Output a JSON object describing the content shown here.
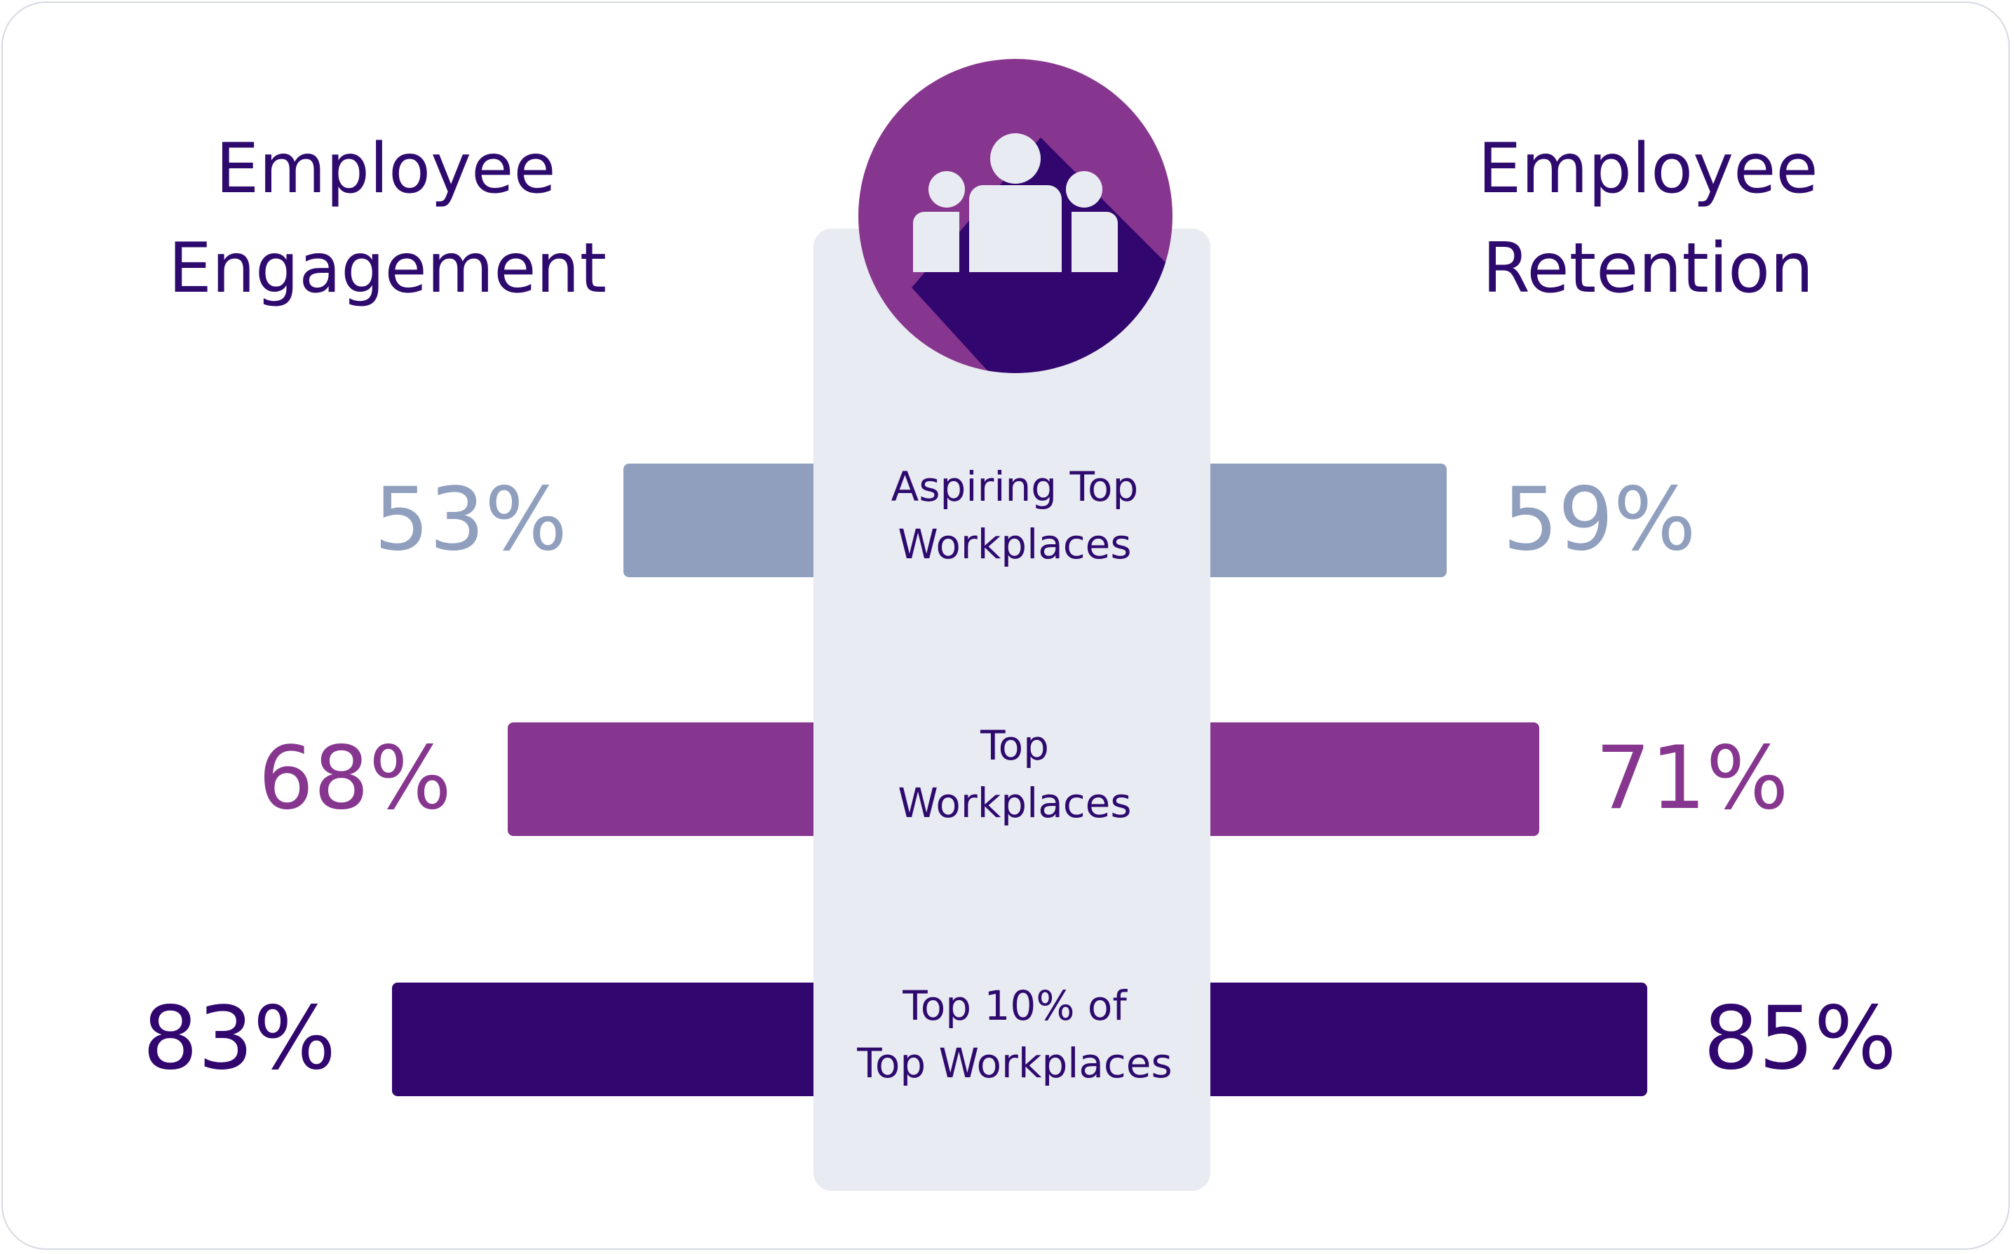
{
  "chart_data": {
    "type": "bar",
    "titles": {
      "left": [
        "Employee",
        "Engagement"
      ],
      "right": [
        "Employee",
        "Retention"
      ]
    },
    "categories": [
      [
        "Aspiring Top",
        "Workplaces"
      ],
      [
        "Top",
        "Workplaces"
      ],
      [
        "Top 10% of",
        "Top Workplaces"
      ]
    ],
    "series": [
      {
        "values": [
          53,
          68,
          83
        ],
        "labels": [
          "53%",
          "68%",
          "83%"
        ]
      },
      {
        "values": [
          59,
          71,
          85
        ],
        "labels": [
          "59%",
          "71%",
          "85%"
        ]
      }
    ],
    "colors": [
      "#8f9fbd",
      "#87368f",
      "#31066e"
    ],
    "label_colors": [
      "#8f9fbd",
      "#87368f",
      "#31066e"
    ],
    "title_color": "#2e0a6e",
    "category_color": "#2e0a6e",
    "panel_color": "#e8ebf1",
    "icon": "group-of-people-icon",
    "icon_colors": {
      "circle": "#87368f",
      "shadow": "#31066e",
      "figures": "#e8ebf1"
    }
  }
}
